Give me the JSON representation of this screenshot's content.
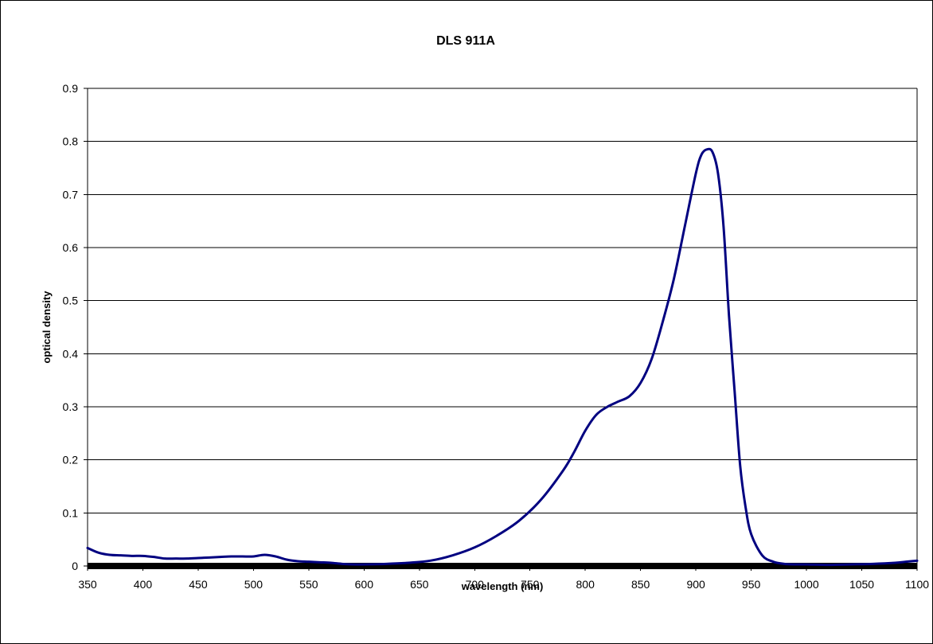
{
  "chart_data": {
    "type": "line",
    "title": "DLS 911A",
    "xlabel": "wavelength (nm)",
    "ylabel": "optical density",
    "xlim": [
      350,
      1100
    ],
    "ylim": [
      0,
      0.9
    ],
    "xticks": [
      350,
      400,
      450,
      500,
      550,
      600,
      650,
      700,
      750,
      800,
      850,
      900,
      950,
      1000,
      1050,
      1100
    ],
    "xtick_labels": [
      "350",
      "400",
      "450",
      "500",
      "550",
      "600",
      "650",
      "700",
      "750",
      "800",
      "850",
      "900",
      "950",
      "1000",
      "1050",
      "1100"
    ],
    "yticks": [
      0,
      0.1,
      0.2,
      0.3,
      0.4,
      0.5,
      0.6,
      0.7,
      0.8,
      0.9
    ],
    "ytick_labels": [
      "0",
      "0.1",
      "0.2",
      "0.3",
      "0.4",
      "0.5",
      "0.6",
      "0.7",
      "0.8",
      "0.9"
    ],
    "grid": "horizontal",
    "legend": "none",
    "colors": {
      "line": "#000080",
      "grid": "#000000",
      "axis": "#000000",
      "background": "#ffffff"
    },
    "series": [
      {
        "x": [
          350,
          360,
          370,
          380,
          390,
          400,
          410,
          420,
          430,
          440,
          450,
          460,
          470,
          480,
          490,
          500,
          510,
          520,
          530,
          540,
          550,
          560,
          570,
          580,
          590,
          600,
          620,
          640,
          660,
          680,
          700,
          720,
          740,
          760,
          780,
          790,
          800,
          810,
          820,
          830,
          840,
          850,
          860,
          870,
          880,
          890,
          900,
          905,
          910,
          915,
          920,
          925,
          930,
          935,
          940,
          945,
          950,
          960,
          970,
          980,
          990,
          1000,
          1020,
          1040,
          1060,
          1080,
          1090,
          1100
        ],
        "y": [
          0.034,
          0.025,
          0.021,
          0.02,
          0.019,
          0.019,
          0.017,
          0.014,
          0.014,
          0.014,
          0.015,
          0.016,
          0.017,
          0.018,
          0.018,
          0.018,
          0.021,
          0.018,
          0.012,
          0.009,
          0.008,
          0.007,
          0.006,
          0.004,
          0.003,
          0.003,
          0.004,
          0.006,
          0.01,
          0.02,
          0.035,
          0.057,
          0.085,
          0.125,
          0.18,
          0.215,
          0.255,
          0.285,
          0.3,
          0.31,
          0.32,
          0.345,
          0.39,
          0.46,
          0.54,
          0.64,
          0.74,
          0.775,
          0.785,
          0.78,
          0.74,
          0.64,
          0.47,
          0.33,
          0.19,
          0.11,
          0.06,
          0.02,
          0.008,
          0.004,
          0.003,
          0.003,
          0.002,
          0.003,
          0.004,
          0.006,
          0.008,
          0.01
        ]
      }
    ]
  }
}
